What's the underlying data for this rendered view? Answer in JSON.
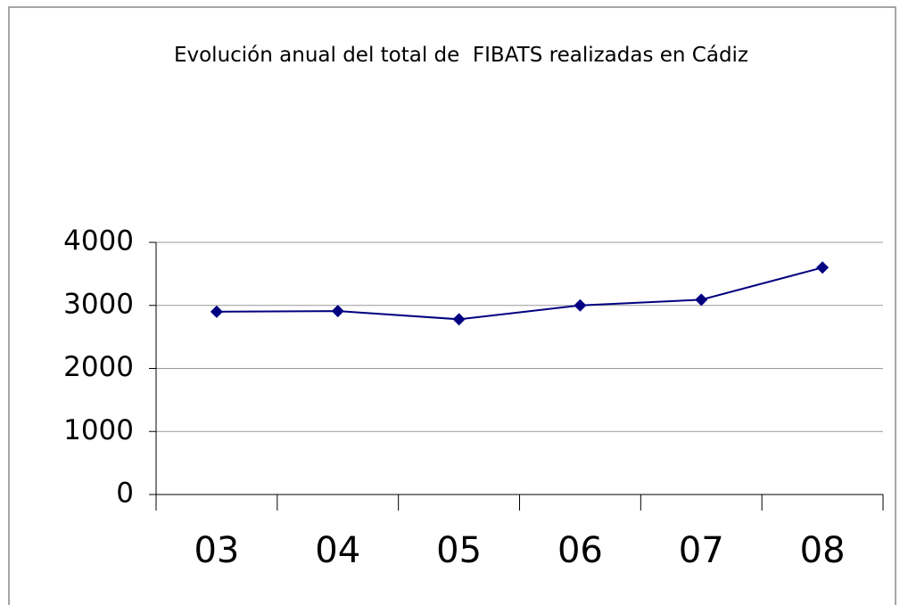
{
  "chart_data": {
    "type": "line",
    "title": "Evolución anual del total de  FIBATS realizadas en Cádiz",
    "categories": [
      "03",
      "04",
      "05",
      "06",
      "07",
      "08"
    ],
    "series": [
      {
        "color": "#000080",
        "values": [
          2900,
          2910,
          2780,
          3000,
          3090,
          3600
        ]
      }
    ],
    "ylim": [
      0,
      4000
    ],
    "yticks": [
      0,
      1000,
      2000,
      3000,
      4000
    ],
    "grid": true
  }
}
